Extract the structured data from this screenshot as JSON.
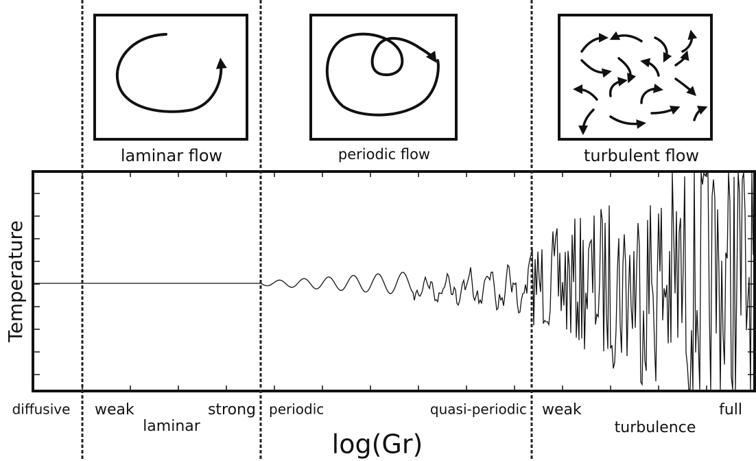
{
  "panels": [
    {
      "label": "laminar flow"
    },
    {
      "label": "periodic flow"
    },
    {
      "label": "turbulent flow"
    }
  ],
  "axis": {
    "y_label": "Temperature",
    "x_label": "log(Gr)"
  },
  "regimes": [
    {
      "name": "diffusive"
    },
    {
      "name": "laminar",
      "sub": [
        "weak",
        "strong"
      ]
    },
    {
      "sub": [
        "periodic",
        "quasi-periodic"
      ]
    },
    {
      "name": "turbulence",
      "sub": [
        "weak",
        "full"
      ]
    }
  ]
}
